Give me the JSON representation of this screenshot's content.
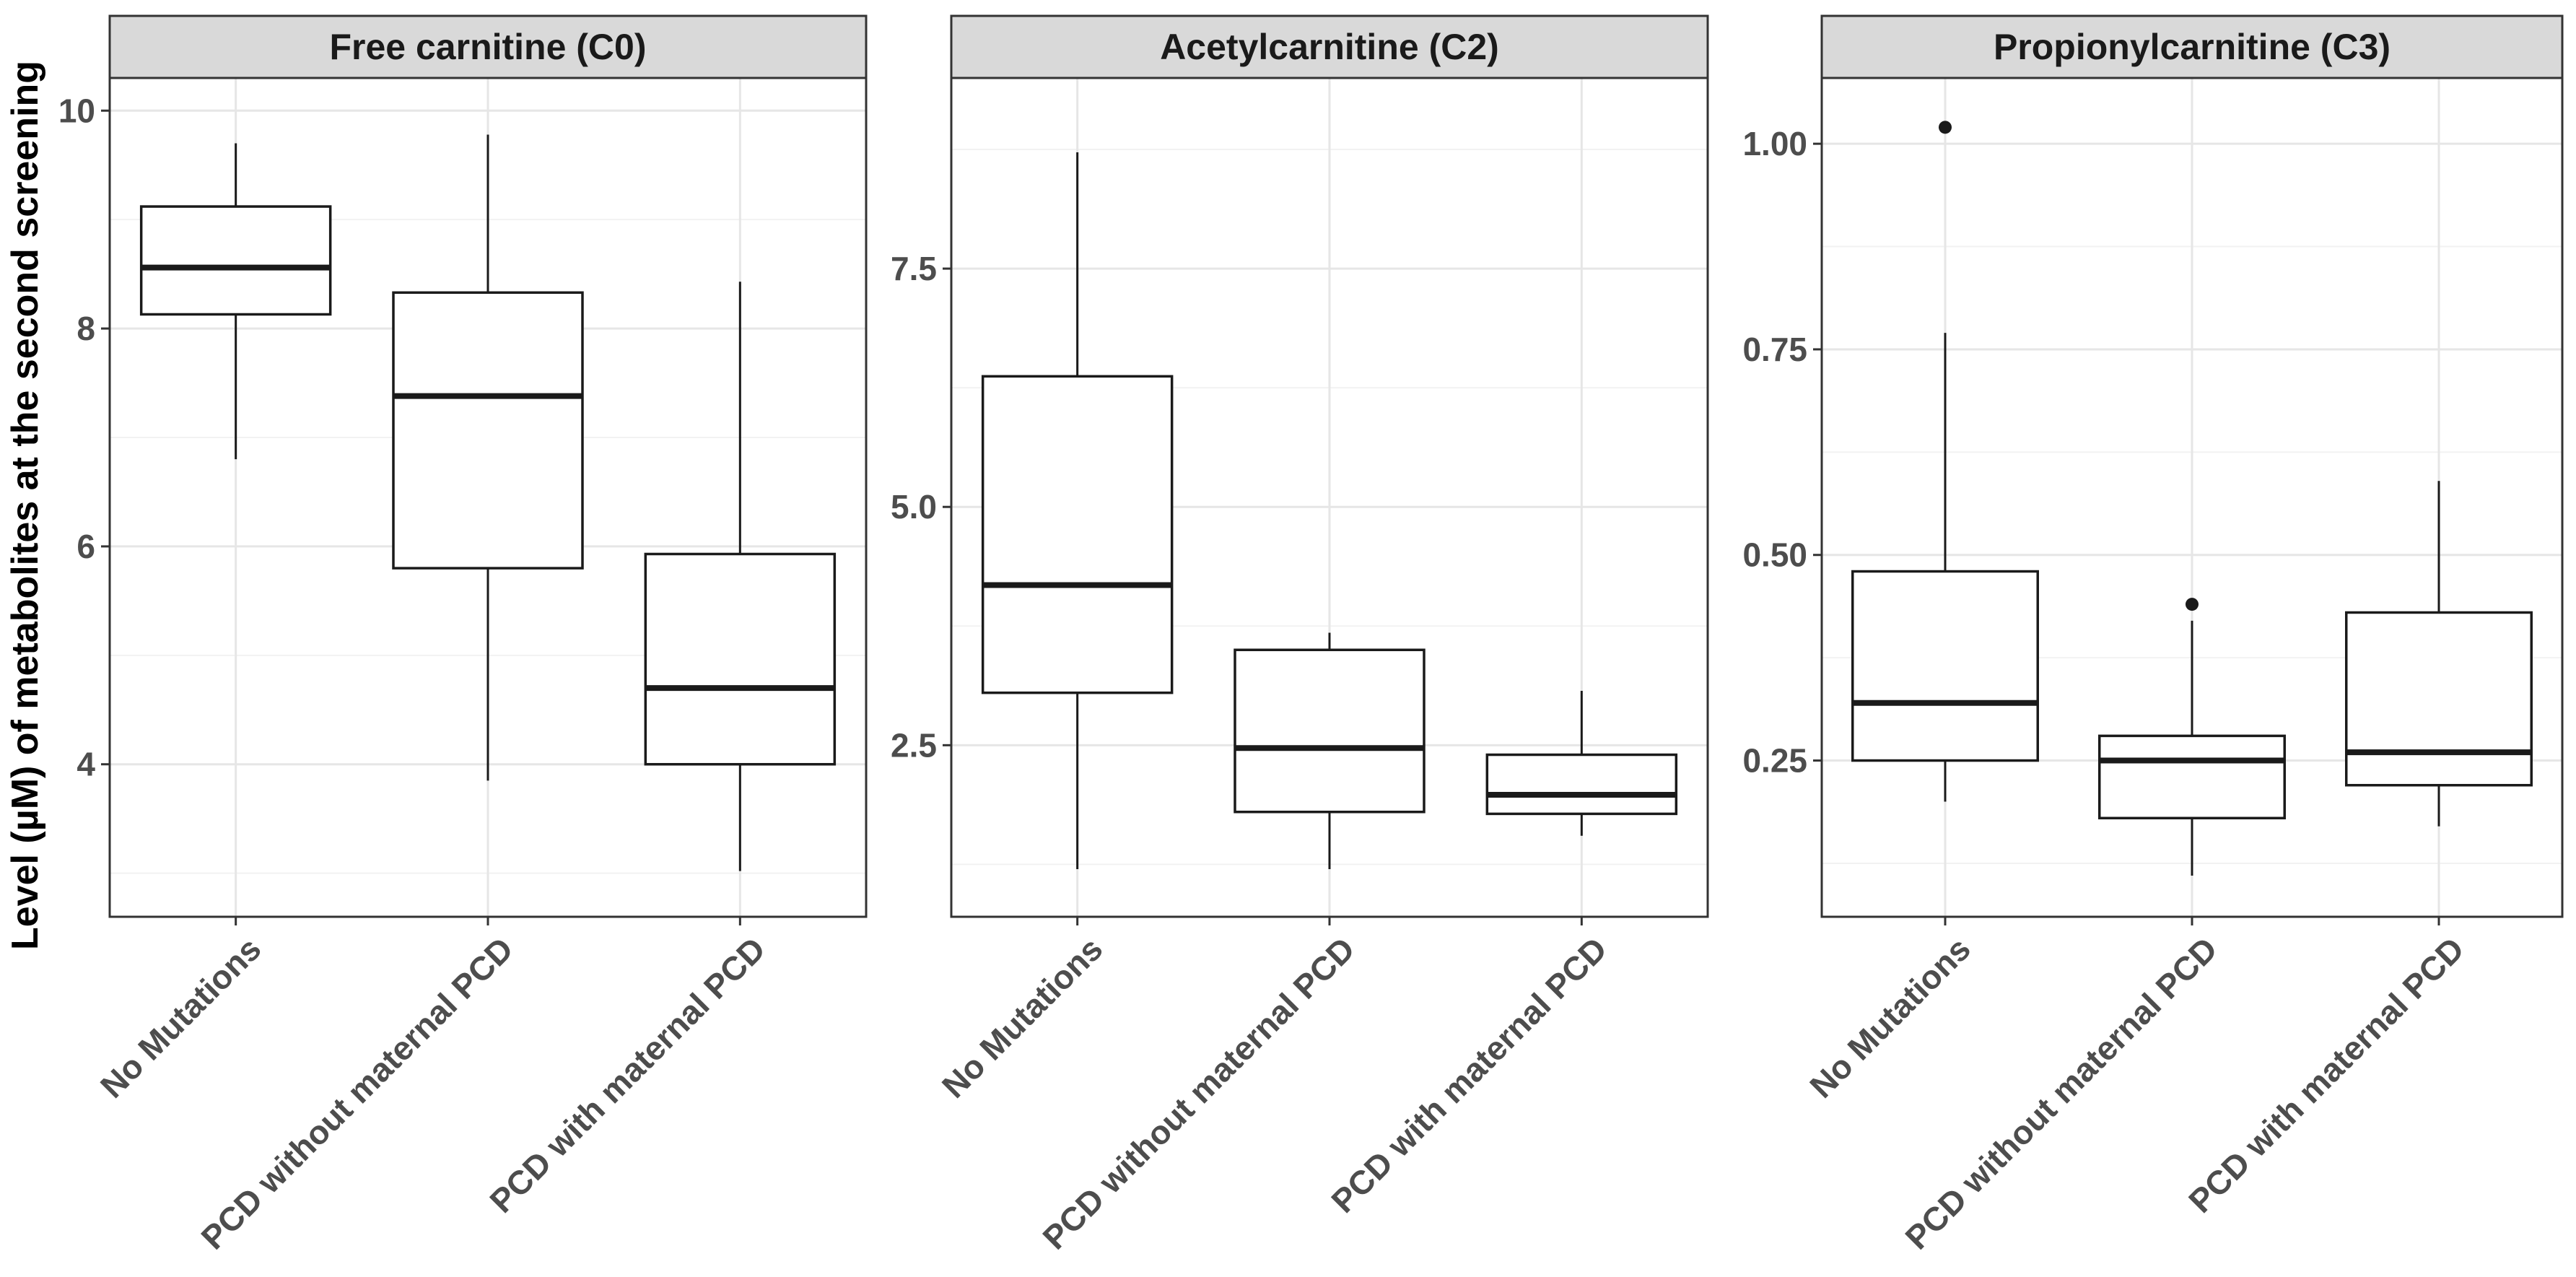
{
  "chart_data": {
    "type": "boxplot",
    "ylabel": "Level (µM) of metabolites at the second screening",
    "categories": [
      "No Mutations",
      "PCD without maternal PCD",
      "PCD with maternal PCD"
    ],
    "panels": [
      {
        "title": "Free carnitine (C0)",
        "ylim": [
          2.6,
          10.3
        ],
        "yticks": [
          4,
          6,
          8,
          10
        ],
        "ytick_labels": [
          "4",
          "6",
          "8",
          "10"
        ],
        "boxes": [
          {
            "category": "No Mutations",
            "min": 6.8,
            "q1": 8.13,
            "median": 8.56,
            "q3": 9.12,
            "max": 9.7,
            "outliers": []
          },
          {
            "category": "PCD without maternal PCD",
            "min": 3.85,
            "q1": 5.8,
            "median": 7.38,
            "q3": 8.33,
            "max": 9.78,
            "outliers": []
          },
          {
            "category": "PCD with maternal PCD",
            "min": 3.02,
            "q1": 4.0,
            "median": 4.7,
            "q3": 5.93,
            "max": 8.43,
            "outliers": []
          }
        ]
      },
      {
        "title": "Acetylcarnitine (C2)",
        "ylim": [
          0.7,
          9.5
        ],
        "yticks": [
          2.5,
          5.0,
          7.5
        ],
        "ytick_labels": [
          "2.5",
          "5.0",
          "7.5"
        ],
        "boxes": [
          {
            "category": "No Mutations",
            "min": 1.2,
            "q1": 3.05,
            "median": 4.18,
            "q3": 6.37,
            "max": 8.72,
            "outliers": []
          },
          {
            "category": "PCD without maternal PCD",
            "min": 1.2,
            "q1": 1.8,
            "median": 2.47,
            "q3": 3.5,
            "max": 3.68,
            "outliers": []
          },
          {
            "category": "PCD with maternal PCD",
            "min": 1.55,
            "q1": 1.78,
            "median": 1.98,
            "q3": 2.4,
            "max": 3.07,
            "outliers": []
          }
        ]
      },
      {
        "title": "Propionylcarnitine (C3)",
        "ylim": [
          0.06,
          1.08
        ],
        "yticks": [
          0.25,
          0.5,
          0.75,
          1.0
        ],
        "ytick_labels": [
          "0.25",
          "0.50",
          "0.75",
          "1.00"
        ],
        "boxes": [
          {
            "category": "No Mutations",
            "min": 0.2,
            "q1": 0.25,
            "median": 0.32,
            "q3": 0.48,
            "max": 0.77,
            "outliers": [
              1.02
            ]
          },
          {
            "category": "PCD without maternal PCD",
            "min": 0.11,
            "q1": 0.18,
            "median": 0.25,
            "q3": 0.28,
            "max": 0.42,
            "outliers": [
              0.44
            ]
          },
          {
            "category": "PCD with maternal PCD",
            "min": 0.17,
            "q1": 0.22,
            "median": 0.26,
            "q3": 0.43,
            "max": 0.59,
            "outliers": []
          }
        ]
      }
    ]
  },
  "colors": {
    "strip_fill": "#d9d9d9",
    "panel_border": "#333333",
    "grid_major": "#e6e6e6",
    "grid_minor": "#f2f2f2",
    "box_line": "#1a1a1a",
    "tick_text": "#4d4d4d"
  }
}
